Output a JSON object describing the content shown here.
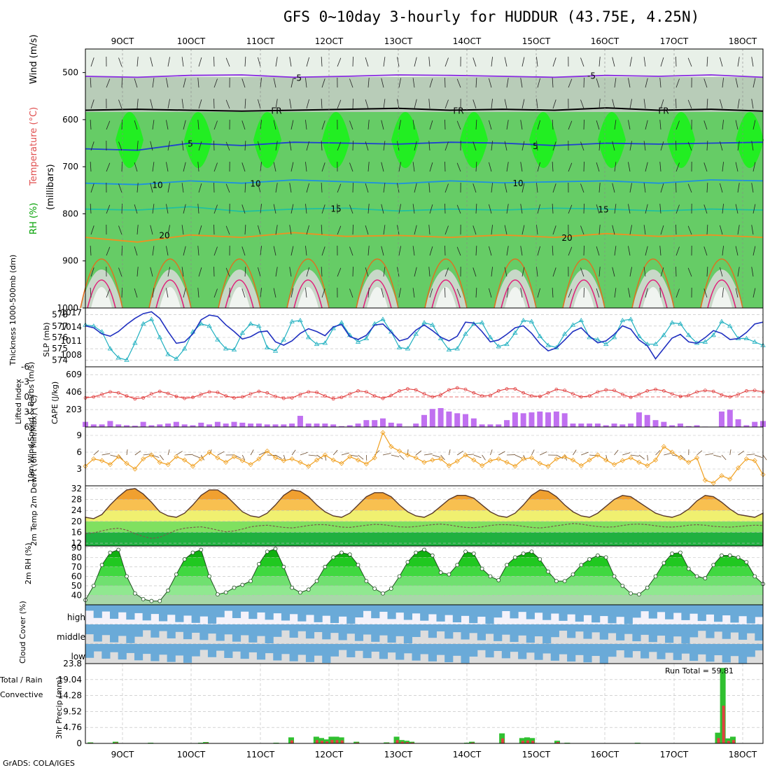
{
  "title": "GFS 0~10day 3-hourly for HUDDUR (43.75E, 4.25N)",
  "footer": "GrADS: COLA/IGES",
  "x_ticks": [
    "9OCT",
    "10OCT",
    "11OCT",
    "12OCT",
    "13OCT",
    "14OCT",
    "15OCT",
    "16OCT",
    "17OCT",
    "18OCT"
  ],
  "colors": {
    "grid": "#b0b0b0",
    "frame": "#000000"
  },
  "chart_data": [
    {
      "type": "heatmap",
      "id": "upper_air",
      "ylabel_parts": [
        "RH (%)",
        "Temperature (°C)",
        "Wind (m/s)"
      ],
      "ylabel_sub": "(millibars)",
      "yticks": [
        "500",
        "600",
        "700",
        "800",
        "900",
        "1000"
      ],
      "ylim": [
        1000,
        450
      ],
      "contours": [
        {
          "name": "-5",
          "color": "#8a2be2",
          "pressure": [
            508,
            510,
            506,
            505,
            510,
            508,
            505,
            506,
            508,
            510,
            506,
            508,
            505,
            510
          ]
        },
        {
          "name": "FR",
          "color": "#000000",
          "pressure": [
            580,
            578,
            580,
            582,
            580,
            578,
            576,
            580,
            578,
            580,
            575,
            580,
            578,
            582
          ]
        },
        {
          "name": "5",
          "color": "#1e40d0",
          "pressure": [
            662,
            665,
            650,
            655,
            648,
            650,
            652,
            648,
            650,
            655,
            650,
            652,
            650,
            648
          ]
        },
        {
          "name": "10",
          "color": "#1e90e0",
          "pressure": [
            735,
            738,
            730,
            735,
            728,
            732,
            736,
            730,
            734,
            732,
            730,
            735,
            728,
            730
          ]
        },
        {
          "name": "15",
          "color": "#20c0a0",
          "pressure": [
            790,
            792,
            785,
            795,
            790,
            788,
            794,
            790,
            792,
            788,
            790,
            794,
            790,
            792
          ]
        },
        {
          "name": "20",
          "color": "#f09020",
          "pressure": [
            850,
            860,
            845,
            850,
            840,
            848,
            846,
            850,
            845,
            850,
            842,
            848,
            845,
            850
          ]
        }
      ],
      "contour_labels": [
        "-5",
        "-5",
        "FR",
        "FR",
        "FR",
        "5",
        "5",
        "10",
        "10",
        "10",
        "15",
        "15",
        "20",
        "20"
      ]
    },
    {
      "type": "line",
      "id": "thickness_slp",
      "ylabel_left": "Thickness 1000-500mb (dm)",
      "ylabel_right": "SLP (mb)",
      "yticks_left": [
        "578",
        "577",
        "576",
        "575",
        "574"
      ],
      "yticks_right": [
        "1017",
        "1014",
        "1011",
        "1008"
      ],
      "series": [
        {
          "name": "Thickness",
          "color": "#20b0c0",
          "values": [
            577.1,
            577.0,
            576.5,
            575.0,
            574.2,
            574.0,
            575.5,
            577.2,
            577.6,
            576.0,
            574.5,
            574.1,
            575.0,
            576.5,
            577.2,
            577.0,
            575.8,
            575.0,
            574.9,
            576.4,
            577.2,
            577.0,
            575.1,
            574.8,
            575.8,
            577.4,
            577.5,
            576.0,
            575.4,
            575.5,
            576.8,
            577.3,
            576.2,
            575.6,
            575.9,
            577.2,
            577.6,
            576.5,
            575.1,
            575.0,
            576.3,
            577.3,
            577.1,
            575.9,
            574.9,
            575.0,
            576.3,
            577.2,
            577.3,
            576.0,
            575.2,
            575.4,
            576.4,
            577.5,
            577.4,
            576.1,
            575.3,
            575.1,
            576.3,
            577.1,
            577.5,
            576.0,
            575.8,
            575.4,
            576.0,
            577.5,
            577.6,
            576.1,
            575.4,
            575.4,
            576.2,
            577.3,
            577.2,
            576.2,
            575.5,
            575.6,
            576.2,
            577.4,
            577.0,
            575.9,
            575.9,
            575.6,
            575.3
          ]
        },
        {
          "name": "SLP",
          "color": "#2030c0",
          "values": [
            1014.2,
            1013.8,
            1012.5,
            1012.0,
            1013.0,
            1014.5,
            1015.8,
            1016.8,
            1017.2,
            1015.8,
            1013.0,
            1010.5,
            1010.8,
            1012.5,
            1015.5,
            1016.5,
            1016.2,
            1014.4,
            1013.0,
            1011.4,
            1011.9,
            1012.9,
            1013.1,
            1010.8,
            1010.1,
            1011.0,
            1012.6,
            1013.6,
            1013.0,
            1012.1,
            1014.0,
            1014.5,
            1011.9,
            1011.3,
            1012.2,
            1014.4,
            1014.6,
            1012.9,
            1011.0,
            1011.5,
            1013.3,
            1014.4,
            1013.2,
            1011.8,
            1011.0,
            1012.0,
            1015.0,
            1014.8,
            1013.0,
            1010.8,
            1011.2,
            1012.4,
            1013.8,
            1014.2,
            1012.6,
            1010.4,
            1008.9,
            1009.5,
            1011.2,
            1013.0,
            1013.8,
            1012.0,
            1010.6,
            1011.0,
            1012.4,
            1014.2,
            1013.5,
            1011.2,
            1010.0,
            1007.2,
            1009.4,
            1011.6,
            1012.4,
            1010.8,
            1010.5,
            1011.7,
            1013.2,
            1012.6,
            1011.3,
            1011.5,
            1012.8,
            1014.6,
            1015.0
          ]
        }
      ]
    },
    {
      "type": "bar",
      "id": "cape_li",
      "ylabel_left": "Lifted Index",
      "ylabel_right": "CAPE (J/kg)",
      "yticks_left": [
        "-6",
        "-3",
        "0",
        "3",
        "6"
      ],
      "yticks_right": [
        "609",
        "406",
        "203"
      ],
      "cape": [
        60,
        30,
        30,
        70,
        30,
        20,
        15,
        60,
        20,
        30,
        40,
        60,
        30,
        20,
        50,
        30,
        60,
        40,
        60,
        50,
        40,
        40,
        30,
        30,
        30,
        40,
        130,
        40,
        40,
        40,
        30,
        10,
        20,
        40,
        80,
        80,
        100,
        50,
        40,
        5,
        40,
        140,
        210,
        220,
        180,
        160,
        150,
        100,
        30,
        30,
        30,
        80,
        170,
        160,
        170,
        180,
        170,
        180,
        160,
        40,
        40,
        40,
        40,
        20,
        40,
        30,
        40,
        170,
        140,
        80,
        60,
        20,
        40,
        10,
        20,
        5,
        0,
        180,
        200,
        90,
        20,
        60,
        70
      ],
      "lifted_index": [
        0.2,
        0,
        -0.5,
        -1.0,
        -0.8,
        -0.2,
        0.4,
        0.2,
        -0.6,
        -1.1,
        -0.7,
        -0.1,
        0.3,
        0.1,
        -0.5,
        -1.0,
        -0.9,
        -0.2,
        0.2,
        0,
        -0.6,
        -1.1,
        -0.8,
        -0.1,
        0.3,
        0.2,
        -0.5,
        -1.0,
        -0.9,
        -0.2,
        0.4,
        0.1,
        -0.6,
        -1.2,
        -1.0,
        -0.2,
        0.3,
        -0.3,
        -1.2,
        -1.6,
        -1.4,
        -0.6,
        0,
        -0.4,
        -1.4,
        -1.8,
        -1.5,
        -0.8,
        -0.2,
        -0.3,
        -1.2,
        -1.6,
        -1.6,
        -0.8,
        -0.2,
        -0.1,
        -0.8,
        -1.5,
        -1.3,
        -0.6,
        0,
        -0.2,
        -1.0,
        -1.4,
        -1.3,
        -0.5,
        0.1,
        -0.5,
        -1.2,
        -1.5,
        -1.2,
        -0.6,
        -0.1,
        -0.3,
        -1.0,
        -1.3,
        -1.1,
        -0.4,
        0,
        -0.5,
        -1.2,
        -1.3,
        -1.0
      ]
    },
    {
      "type": "line",
      "id": "wind",
      "ylabel": "10m Wind Speed & Barbs (m/s)",
      "yticks": [
        "9",
        "6",
        "3"
      ],
      "ylim": [
        0,
        10.5
      ],
      "values": [
        3.5,
        4.8,
        4.5,
        3.8,
        5.2,
        4.0,
        3.0,
        4.8,
        5.5,
        4.2,
        3.8,
        5.2,
        4.6,
        3.5,
        4.8,
        6.0,
        5.0,
        4.2,
        5.2,
        4.5,
        3.8,
        4.8,
        6.2,
        5.0,
        4.5,
        4.8,
        4.2,
        3.5,
        4.6,
        5.5,
        4.6,
        4.0,
        5.2,
        4.6,
        3.9,
        5.0,
        9.5,
        7.0,
        6.2,
        5.5,
        5.0,
        4.2,
        4.6,
        4.8,
        3.6,
        4.4,
        5.5,
        4.6,
        3.6,
        4.5,
        4.8,
        4.2,
        3.5,
        4.8,
        5.0,
        4.0,
        3.5,
        4.8,
        5.2,
        4.6,
        3.6,
        4.6,
        5.5,
        4.6,
        3.8,
        4.5,
        5.0,
        4.2,
        3.6,
        4.6,
        7.0,
        6.0,
        5.0,
        4.2,
        5.0,
        1.0,
        0.5,
        1.8,
        1.2,
        3.2,
        4.8,
        4.5,
        2.0
      ]
    },
    {
      "type": "area",
      "id": "temp_dewpt",
      "ylabel": "2m Temp 2m DewPt (6hr Min/Max) (°C)",
      "yticks": [
        "32",
        "28",
        "24",
        "20",
        "16",
        "12"
      ],
      "ylim": [
        11,
        33
      ],
      "temp": [
        21.5,
        21,
        22.5,
        26,
        29,
        31.5,
        32,
        30,
        27,
        23.5,
        22,
        21.5,
        23,
        26,
        29.5,
        31.5,
        31.5,
        29.5,
        26.5,
        23.5,
        22,
        21.5,
        23,
        26,
        29.5,
        31.5,
        31,
        29,
        26,
        23.5,
        22,
        21.5,
        23,
        26,
        29,
        30.5,
        30.5,
        29,
        26,
        23.5,
        22,
        21.5,
        23,
        25.5,
        28,
        29.5,
        29.5,
        28.5,
        26,
        23.5,
        22,
        21.5,
        23,
        26,
        29.5,
        31.5,
        31,
        29,
        26,
        23.5,
        22,
        21.5,
        23,
        25.5,
        28,
        29.5,
        29,
        27,
        25,
        23,
        22,
        21.5,
        22.5,
        24.5,
        27.5,
        29.5,
        29,
        27,
        24.5,
        22.5,
        22,
        21.5,
        23
      ],
      "dewpoint": [
        15.5,
        15.8,
        16.5,
        17.2,
        17.5,
        16.8,
        15.5,
        14.5,
        13.8,
        14.2,
        15.5,
        16.8,
        17.5,
        17.8,
        18.0,
        17.5,
        16.8,
        16.2,
        16.5,
        17.2,
        18.0,
        18.4,
        18.6,
        18.2,
        17.8,
        17.6,
        18.0,
        18.5,
        18.8,
        18.8,
        18.4,
        17.9,
        17.8,
        18.2,
        18.6,
        18.9,
        18.8,
        18.4,
        18.0,
        17.9,
        18.1,
        18.5,
        18.8,
        19.0,
        18.7,
        18.2,
        17.8,
        17.7,
        18.0,
        18.5,
        18.8,
        18.8,
        18.6,
        18.2,
        17.8,
        17.6,
        17.9,
        18.4,
        18.8,
        19.2,
        19.0,
        18.5,
        18.1,
        17.9,
        18.0,
        18.5,
        18.9,
        19.0,
        18.8,
        18.4,
        18.0,
        17.9,
        18.2,
        18.6,
        18.8,
        18.6,
        18.2,
        18.0,
        17.9,
        18.1,
        18.4,
        18.6,
        18.5
      ]
    },
    {
      "type": "area",
      "id": "rh",
      "ylabel": "2m RH (%)",
      "yticks": [
        "90",
        "80",
        "70",
        "60",
        "50",
        "40"
      ],
      "ylim": [
        30,
        92
      ],
      "values": [
        35,
        50,
        72,
        85,
        88,
        60,
        42,
        36,
        34,
        34,
        45,
        62,
        78,
        85,
        88,
        60,
        41,
        43,
        48,
        51,
        55,
        73,
        86,
        89,
        70,
        48,
        43,
        46,
        55,
        70,
        80,
        85,
        83,
        72,
        55,
        47,
        42,
        47,
        60,
        75,
        85,
        88,
        82,
        64,
        62,
        72,
        86,
        84,
        68,
        60,
        56,
        72,
        80,
        84,
        86,
        78,
        65,
        55,
        55,
        62,
        72,
        78,
        82,
        80,
        60,
        50,
        42,
        41,
        48,
        60,
        74,
        84,
        85,
        68,
        60,
        58,
        72,
        82,
        82,
        80,
        75,
        60,
        52
      ]
    },
    {
      "type": "heatmap",
      "id": "cloud",
      "ylabel": "Cloud Cover (%)",
      "row_labels": [
        "high",
        "middle",
        "low"
      ]
    },
    {
      "type": "bar",
      "id": "precip",
      "ylabel_left": "Total / Rain",
      "ylabel_right": "Convective",
      "ylabel": "3hr Precip (mm)",
      "yticks": [
        "23.8",
        "19.04",
        "14.28",
        "9.52",
        "4.76",
        "0"
      ],
      "ylim": [
        0,
        23.8
      ],
      "run_total_label": "Run Total = 59.81",
      "values": [
        0,
        0.3,
        0,
        0,
        0,
        0,
        0.5,
        0,
        0,
        0,
        0,
        0,
        0,
        0.2,
        0,
        0,
        0,
        0,
        0,
        0,
        0,
        0,
        0,
        0.2,
        0.4,
        0,
        0,
        0,
        0,
        0.1,
        0,
        0,
        0,
        0,
        0,
        0,
        0,
        0,
        0.2,
        0,
        0,
        1.8,
        0,
        0,
        0,
        0,
        2.0,
        1.6,
        1.2,
        2.0,
        2.0,
        1.8,
        0,
        0,
        0.5,
        0,
        0,
        0,
        0,
        0,
        0.3,
        0,
        2.0,
        1.0,
        0.8,
        0.5,
        0,
        0,
        0,
        0,
        0,
        0,
        0,
        0,
        0,
        0,
        0.2,
        0.5,
        0,
        0,
        0,
        0,
        0,
        3.0,
        0,
        0,
        0,
        1.6,
        1.8,
        1.6,
        0,
        0,
        0,
        0,
        0.8,
        0,
        0.2,
        0,
        0,
        0,
        0,
        0,
        0,
        0,
        0,
        0,
        0,
        0,
        0,
        0,
        0.2,
        0,
        0,
        0,
        0,
        0,
        0,
        0,
        0,
        0,
        0,
        0,
        0,
        0,
        0,
        0,
        3.2,
        22.5,
        1.5,
        2.0,
        0,
        0,
        0,
        0,
        0,
        0
      ]
    }
  ]
}
